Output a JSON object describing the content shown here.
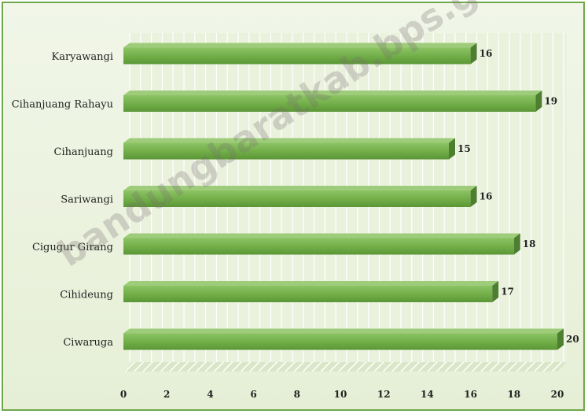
{
  "chart_data": {
    "type": "bar",
    "orientation": "horizontal",
    "categories": [
      "Karyawangi",
      "Cihanjuang Rahayu",
      "Cihanjuang",
      "Sariwangi",
      "Cigugur Girang",
      "Cihideung",
      "Ciwaruga"
    ],
    "values": [
      16,
      19,
      15,
      16,
      18,
      17,
      20
    ],
    "xlim": [
      0,
      20
    ],
    "xticks": [
      "0",
      "2",
      "4",
      "6",
      "8",
      "10",
      "12",
      "14",
      "16",
      "18",
      "20"
    ],
    "title": "",
    "xlabel": "",
    "ylabel": "",
    "grid": true,
    "legend": "none",
    "colors": {
      "bar": "#70ad47",
      "bar_dark": "#4e7f30",
      "bar_light": "#9fcc7a",
      "background": "#eaf2de",
      "border": "#6fa84a"
    }
  },
  "watermark": "bandungbaratkab.bps.go.id"
}
